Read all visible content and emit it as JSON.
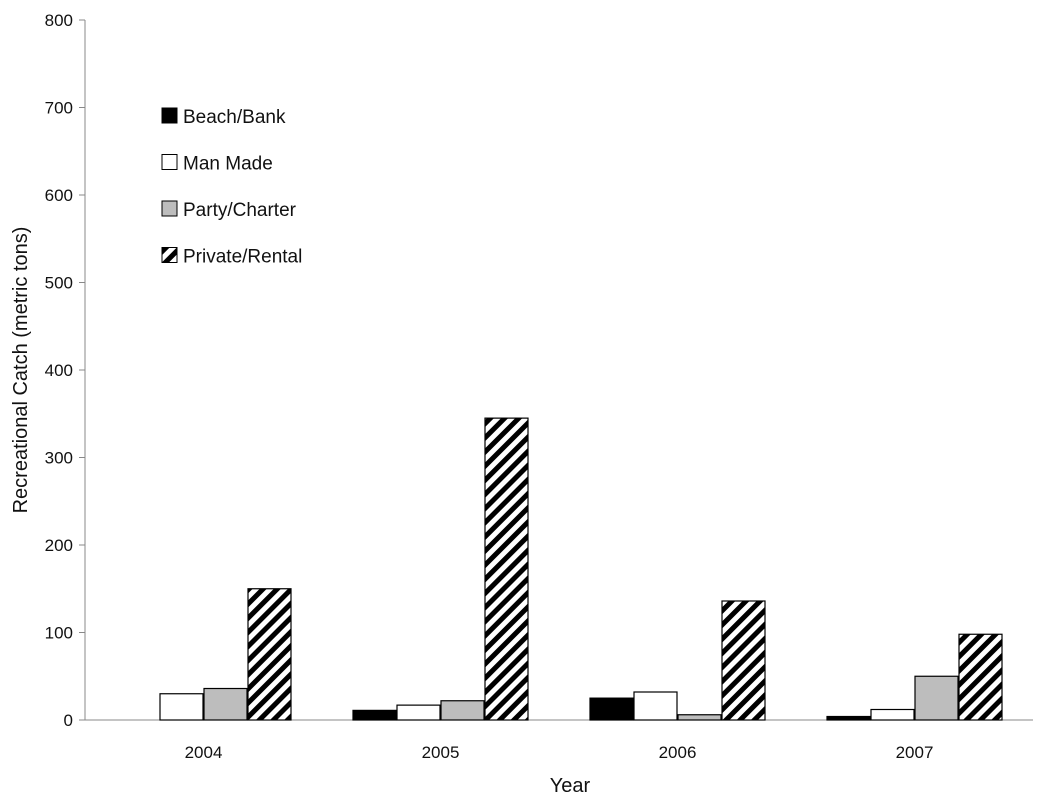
{
  "chart_data": {
    "type": "bar",
    "xlabel": "Year",
    "ylabel": "Recreational Catch (metric tons)",
    "ylim": [
      0,
      800
    ],
    "yticks": [
      0,
      100,
      200,
      300,
      400,
      500,
      600,
      700,
      800
    ],
    "categories": [
      "2004",
      "2005",
      "2006",
      "2007"
    ],
    "series": [
      {
        "name": "Beach/Bank",
        "fill": "solid-black",
        "values": [
          0,
          11,
          25,
          4
        ]
      },
      {
        "name": "Man Made",
        "fill": "white",
        "values": [
          30,
          17,
          32,
          12
        ]
      },
      {
        "name": "Party/Charter",
        "fill": "gray",
        "values": [
          36,
          22,
          6,
          50
        ]
      },
      {
        "name": "Private/Rental",
        "fill": "diagonal-hatch",
        "values": [
          150,
          345,
          136,
          98
        ]
      }
    ],
    "legend_position": "upper-left",
    "grid": false,
    "colors": {
      "black": "#000000",
      "gray": "#bdbdbd",
      "white": "#ffffff",
      "axis": "#888888"
    }
  }
}
